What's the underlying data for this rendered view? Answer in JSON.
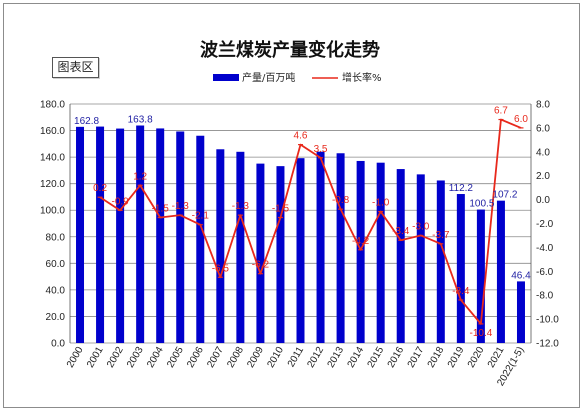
{
  "chart_label": "图表区",
  "chart_data": {
    "type": "bar",
    "title": "波兰煤炭产量变化走势",
    "categories": [
      "2000",
      "2001",
      "2002",
      "2003",
      "2004",
      "2005",
      "2006",
      "2007",
      "2008",
      "2009",
      "2010",
      "2011",
      "2012",
      "2013",
      "2014",
      "2015",
      "2016",
      "2017",
      "2018",
      "2019",
      "2020",
      "2021",
      "2022(1-5)"
    ],
    "series": [
      {
        "name": "产量/百万吨",
        "type": "bar",
        "axis": "left",
        "color": "#0000cc",
        "values": [
          162.8,
          163.0,
          161.5,
          163.8,
          161.6,
          159.3,
          156.1,
          145.9,
          144.0,
          135.1,
          133.2,
          139.2,
          144.1,
          142.9,
          137.1,
          135.8,
          131.0,
          127.0,
          122.4,
          112.2,
          100.5,
          107.2,
          46.4
        ],
        "labels": {
          "0": "162.8",
          "3": "163.8",
          "19": "112.2",
          "20": "100.5",
          "21": "107.2",
          "22": "46.4"
        }
      },
      {
        "name": "增长率%",
        "type": "line",
        "axis": "right",
        "color": "#e8291c",
        "values": [
          null,
          0.2,
          -0.9,
          1.2,
          -1.5,
          -1.3,
          -2.1,
          -6.5,
          -1.3,
          -6.2,
          -1.5,
          4.6,
          3.5,
          -0.8,
          -4.2,
          -1.0,
          -3.4,
          -3.0,
          -3.7,
          -8.4,
          -10.4,
          6.7,
          6.0
        ],
        "labels": [
          "",
          "0.2",
          "-0.9",
          "1.2",
          "-1.5",
          "-1.3",
          "-2.1",
          "-6.5",
          "-1.3",
          "-6.2",
          "-1.5",
          "4.6",
          "3.5",
          "-0.8",
          "-4.2",
          "-1.0",
          "-3.4",
          "-3.0",
          "-3.7",
          "-8.4",
          "-10.4",
          "6.7",
          "6.0"
        ]
      }
    ],
    "y_left": {
      "min": 0,
      "max": 180,
      "step": 20,
      "ticks": [
        "0.0",
        "20.0",
        "40.0",
        "60.0",
        "80.0",
        "100.0",
        "120.0",
        "140.0",
        "160.0",
        "180.0"
      ]
    },
    "y_right": {
      "min": -12,
      "max": 8,
      "step": 2,
      "ticks": [
        "-12.0",
        "-10.0",
        "-8.0",
        "-6.0",
        "-4.0",
        "-2.0",
        "0.0",
        "2.0",
        "4.0",
        "6.0",
        "8.0"
      ]
    },
    "grid": true,
    "legend_position": "top-right"
  }
}
